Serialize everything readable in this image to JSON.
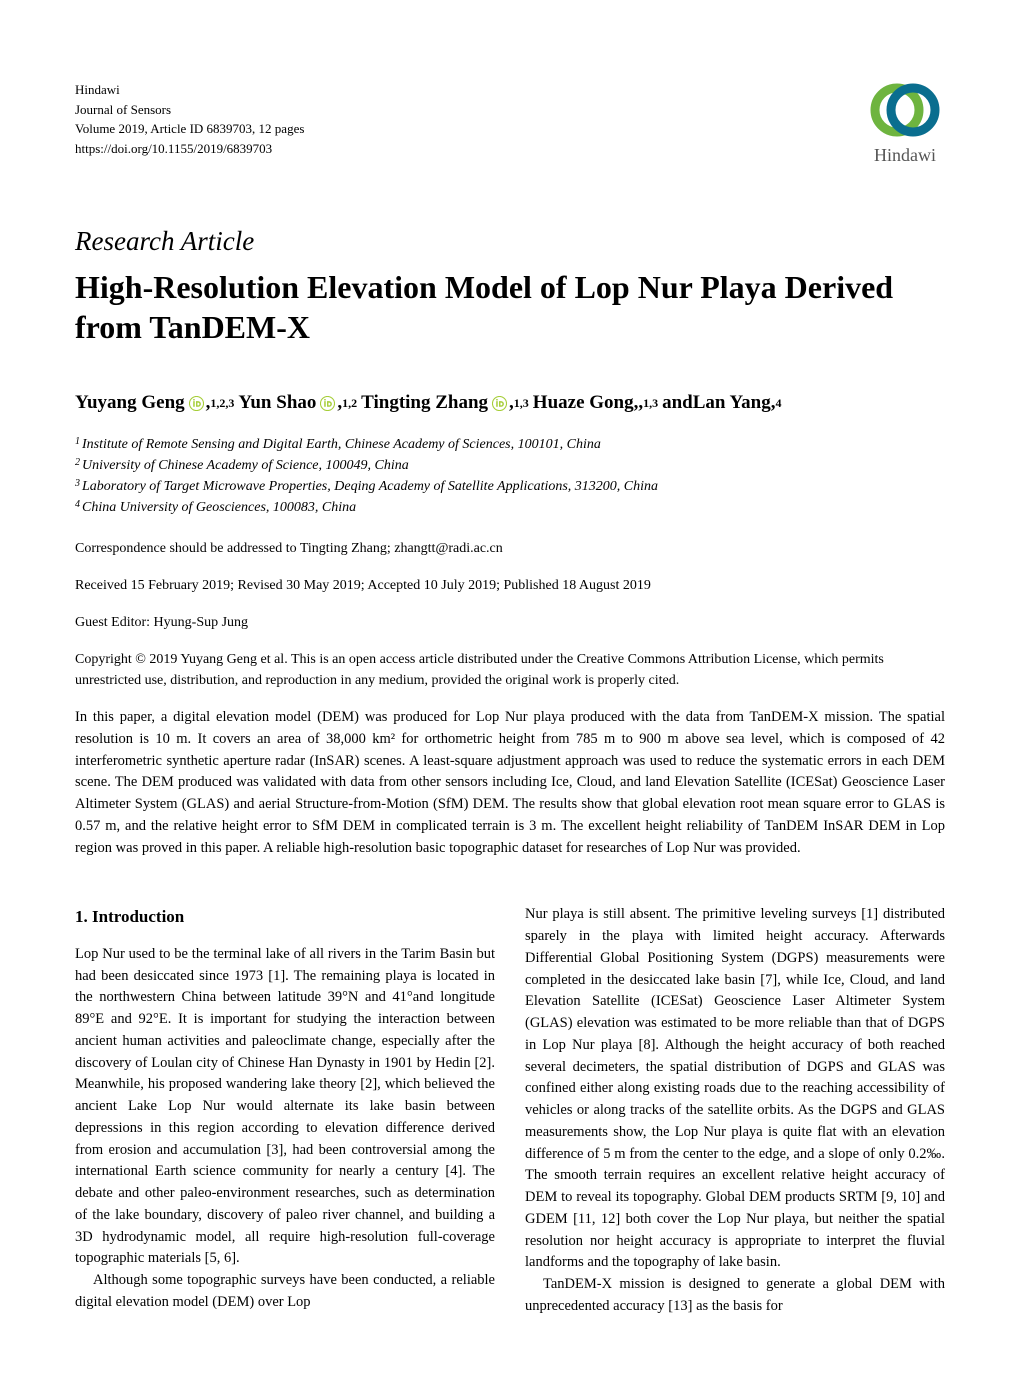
{
  "journal": {
    "publisher": "Hindawi",
    "name": "Journal of Sensors",
    "volume_line": "Volume 2019, Article ID 6839703, 12 pages",
    "doi": "https://doi.org/10.1155/2019/6839703",
    "logo_text": "Hindawi",
    "logo_colors": {
      "green": "#6eb43f",
      "blue": "#0a6e8f"
    }
  },
  "article": {
    "type": "Research Article",
    "title": "High-Resolution Elevation Model of Lop Nur Playa Derived from TanDEM-X"
  },
  "authors": [
    {
      "name": "Yuyang Geng",
      "orcid": true,
      "sup": "1,2,3",
      "trail": " "
    },
    {
      "name": "Yun Shao",
      "orcid": true,
      "sup": "1,2",
      "trail": " "
    },
    {
      "name": "Tingting Zhang",
      "orcid": true,
      "sup": "1,3",
      "trail": " "
    },
    {
      "name": "Huaze Gong,",
      "orcid": false,
      "sup": "1,3",
      "trail": " and "
    },
    {
      "name": "Lan Yang",
      "orcid": false,
      "sup": "4",
      "trail": ""
    }
  ],
  "orcid_color": "#a6ce39",
  "affiliations": [
    {
      "num": "1",
      "text": "Institute of Remote Sensing and Digital Earth, Chinese Academy of Sciences, 100101, China"
    },
    {
      "num": "2",
      "text": "University of Chinese Academy of Science, 100049, China"
    },
    {
      "num": "3",
      "text": "Laboratory of Target Microwave Properties, Deqing Academy of Satellite Applications, 313200, China"
    },
    {
      "num": "4",
      "text": "China University of Geosciences, 100083, China"
    }
  ],
  "correspondence": "Correspondence should be addressed to Tingting Zhang; zhangtt@radi.ac.cn",
  "dates": "Received 15 February 2019; Revised 30 May 2019; Accepted 10 July 2019; Published 18 August 2019",
  "guest_editor": "Guest Editor: Hyung-Sup Jung",
  "copyright": "Copyright © 2019 Yuyang Geng et al. This is an open access article distributed under the Creative Commons Attribution License, which permits unrestricted use, distribution, and reproduction in any medium, provided the original work is properly cited.",
  "abstract": "In this paper, a digital elevation model (DEM) was produced for Lop Nur playa produced with the data from TanDEM-X mission. The spatial resolution is 10 m. It covers an area of 38,000 km² for orthometric height from 785 m to 900 m above sea level, which is composed of 42 interferometric synthetic aperture radar (InSAR) scenes. A least-square adjustment approach was used to reduce the systematic errors in each DEM scene. The DEM produced was validated with data from other sensors including Ice, Cloud, and land Elevation Satellite (ICESat) Geoscience Laser Altimeter System (GLAS) and aerial Structure-from-Motion (SfM) DEM. The results show that global elevation root mean square error to GLAS is 0.57 m, and the relative height error to SfM DEM in complicated terrain is 3 m. The excellent height reliability of TanDEM InSAR DEM in Lop region was proved in this paper. A reliable high-resolution basic topographic dataset for researches of Lop Nur was provided.",
  "section_heading": "1. Introduction",
  "body": {
    "left_p1": "Lop Nur used to be the terminal lake of all rivers in the Tarim Basin but had been desiccated since 1973 [1]. The remaining playa is located in the northwestern China between latitude 39°N and 41°and longitude 89°E and 92°E. It is important for studying the interaction between ancient human activities and paleoclimate change, especially after the discovery of Loulan city of Chinese Han Dynasty in 1901 by Hedin [2]. Meanwhile, his proposed wandering lake theory [2], which believed the ancient Lake Lop Nur would alternate its lake basin between depressions in this region according to elevation difference derived from erosion and accumulation [3], had been controversial among the international Earth science community for nearly a century [4]. The debate and other paleo-environment researches, such as determination of the lake boundary, discovery of paleo river channel, and building a 3D hydrodynamic model, all require high-resolution full-coverage topographic materials [5, 6].",
    "left_p2": "Although some topographic surveys have been conducted, a reliable digital elevation model (DEM) over Lop",
    "right_p1": "Nur playa is still absent. The primitive leveling surveys [1] distributed sparely in the playa with limited height accuracy. Afterwards Differential Global Positioning System (DGPS) measurements were completed in the desiccated lake basin [7], while Ice, Cloud, and land Elevation Satellite (ICESat) Geoscience Laser Altimeter System (GLAS) elevation was estimated to be more reliable than that of DGPS in Lop Nur playa [8]. Although the height accuracy of both reached several decimeters, the spatial distribution of DGPS and GLAS was confined either along existing roads due to the reaching accessibility of vehicles or along tracks of the satellite orbits. As the DGPS and GLAS measurements show, the Lop Nur playa is quite flat with an elevation difference of 5 m from the center to the edge, and a slope of only 0.2‰. The smooth terrain requires an excellent relative height accuracy of DEM to reveal its topography. Global DEM products SRTM [9, 10] and GDEM [11, 12] both cover the Lop Nur playa, but neither the spatial resolution nor height accuracy is appropriate to interpret the fluvial landforms and the topography of lake basin.",
    "right_p2": "TanDEM-X mission is designed to generate a global DEM with unprecedented accuracy [13] as the basis for"
  }
}
